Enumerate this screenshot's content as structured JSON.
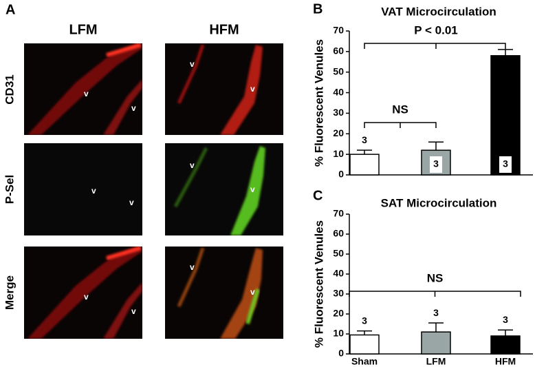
{
  "panel_a": {
    "letter": "A",
    "columns": [
      "LFM",
      "HFM"
    ],
    "rows": [
      "CD31",
      "P-Sel",
      "Merge"
    ],
    "marker": "v"
  },
  "chart_data": [
    {
      "type": "bar",
      "letter": "B",
      "title": "VAT Microcirculation",
      "ylabel": "% Fluorescent Venules",
      "categories": [
        null,
        null,
        null
      ],
      "values": [
        10,
        12,
        58
      ],
      "errors": [
        2,
        4,
        3
      ],
      "colors": [
        "#ffffff",
        "#9aa5a5",
        "#000000"
      ],
      "n": [
        3,
        3,
        3
      ],
      "annotations": [
        "P < 0.01",
        "NS"
      ],
      "ylim": [
        0,
        70
      ],
      "yticks": [
        0,
        10,
        20,
        30,
        40,
        50,
        60,
        70
      ],
      "grid": false
    },
    {
      "type": "bar",
      "letter": "C",
      "title": "SAT Microcirculation",
      "ylabel": "% Fluorescent Venules",
      "categories": [
        "Sham",
        "LFM",
        "HFM"
      ],
      "values": [
        9.5,
        11,
        9
      ],
      "errors": [
        2,
        4.5,
        3
      ],
      "colors": [
        "#ffffff",
        "#9aa5a5",
        "#000000"
      ],
      "n": [
        3,
        3,
        3
      ],
      "annotations": [
        "NS"
      ],
      "ylim": [
        0,
        70
      ],
      "yticks": [
        0,
        10,
        20,
        30,
        40,
        50,
        60,
        70
      ],
      "grid": false
    }
  ]
}
